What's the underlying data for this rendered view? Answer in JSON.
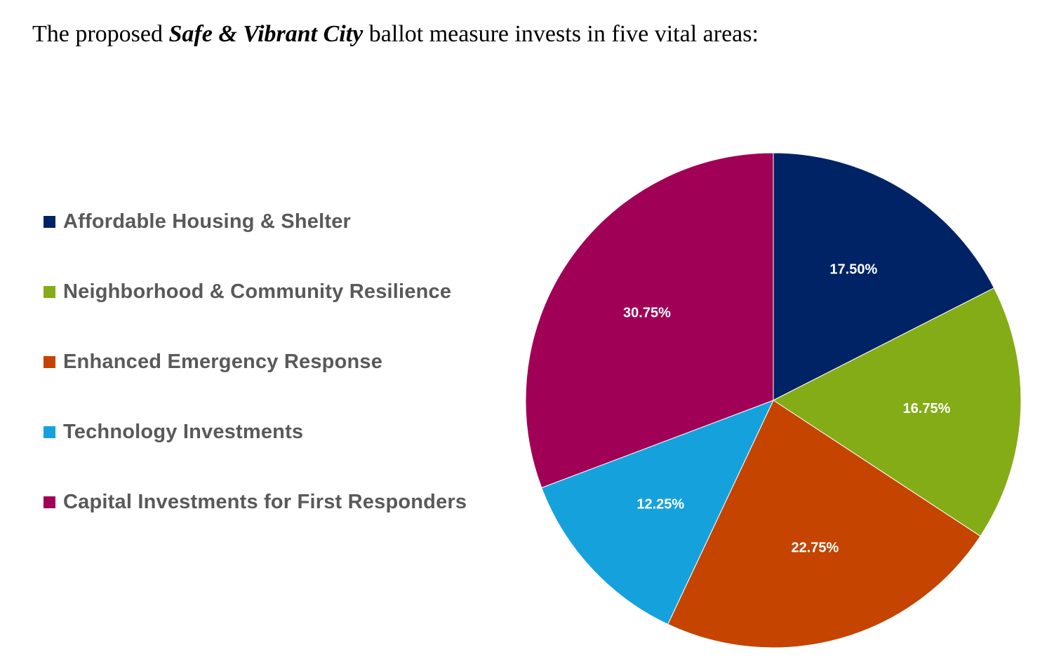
{
  "intro": {
    "before": "The proposed ",
    "emphasis": "Safe & Vibrant City",
    "after": " ballot measure invests in five vital areas:"
  },
  "chart_data": {
    "type": "pie",
    "title": "",
    "legend_position": "left",
    "categories": [
      "Affordable Housing & Shelter",
      "Neighborhood & Community Resilience",
      "Enhanced Emergency Response",
      "Technology Investments",
      "Capital Investments for First Responders"
    ],
    "values": [
      17.5,
      16.75,
      22.75,
      12.25,
      30.75
    ],
    "labels": [
      "17.50%",
      "16.75%",
      "22.75%",
      "12.25%",
      "30.75%"
    ],
    "colors": [
      "#002366",
      "#84AC16",
      "#C44400",
      "#15A2DC",
      "#A00056"
    ]
  }
}
